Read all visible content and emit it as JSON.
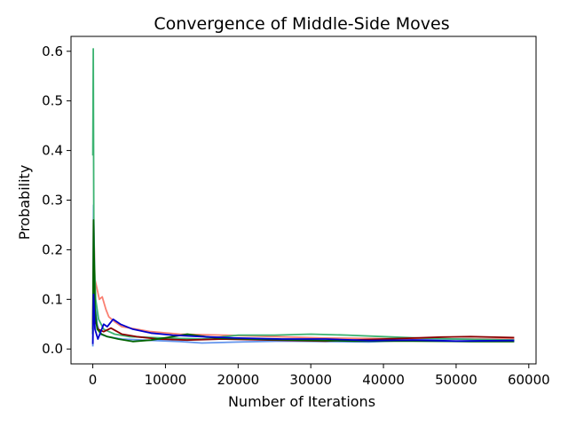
{
  "chart_data": {
    "type": "line",
    "title": "Convergence of Middle-Side Moves",
    "xlabel": "Number of Iterations",
    "ylabel": "Probability",
    "xlim": [
      -3000,
      61000
    ],
    "ylim": [
      -0.03,
      0.63
    ],
    "xticks": [
      0,
      10000,
      20000,
      30000,
      40000,
      50000,
      60000
    ],
    "xtick_labels": [
      "0",
      "10000",
      "20000",
      "30000",
      "40000",
      "50000",
      "60000"
    ],
    "yticks": [
      0.0,
      0.1,
      0.2,
      0.3,
      0.4,
      0.5,
      0.6
    ],
    "ytick_labels": [
      "0.0",
      "0.1",
      "0.2",
      "0.3",
      "0.4",
      "0.5",
      "0.6"
    ],
    "grid": false,
    "legend": "none",
    "series": [
      {
        "color": "#fa8072",
        "points": [
          [
            0,
            0.05
          ],
          [
            100,
            0.27
          ],
          [
            300,
            0.14
          ],
          [
            600,
            0.12
          ],
          [
            900,
            0.1
          ],
          [
            1300,
            0.105
          ],
          [
            1800,
            0.08
          ],
          [
            2200,
            0.065
          ],
          [
            3000,
            0.055
          ],
          [
            4000,
            0.045
          ],
          [
            6000,
            0.04
          ],
          [
            8000,
            0.035
          ],
          [
            12000,
            0.03
          ],
          [
            18000,
            0.028
          ],
          [
            25000,
            0.025
          ],
          [
            32000,
            0.022
          ],
          [
            40000,
            0.021
          ],
          [
            48000,
            0.02
          ],
          [
            58000,
            0.02
          ]
        ]
      },
      {
        "color": "#6495ed",
        "points": [
          [
            0,
            0.005
          ],
          [
            100,
            0.29
          ],
          [
            300,
            0.1
          ],
          [
            600,
            0.05
          ],
          [
            1000,
            0.03
          ],
          [
            2000,
            0.025
          ],
          [
            4000,
            0.02
          ],
          [
            7000,
            0.018
          ],
          [
            12000,
            0.015
          ],
          [
            15000,
            0.012
          ],
          [
            20000,
            0.014
          ],
          [
            26000,
            0.016
          ],
          [
            32000,
            0.015
          ],
          [
            38000,
            0.014
          ],
          [
            44000,
            0.018
          ],
          [
            50000,
            0.02
          ],
          [
            58000,
            0.018
          ]
        ]
      },
      {
        "color": "#3cb371",
        "points": [
          [
            0,
            0.39
          ],
          [
            60,
            0.605
          ],
          [
            150,
            0.2
          ],
          [
            400,
            0.1
          ],
          [
            800,
            0.06
          ],
          [
            1500,
            0.04
          ],
          [
            3000,
            0.03
          ],
          [
            5000,
            0.025
          ],
          [
            10000,
            0.022
          ],
          [
            15000,
            0.02
          ],
          [
            20000,
            0.028
          ],
          [
            25000,
            0.028
          ],
          [
            30000,
            0.03
          ],
          [
            35000,
            0.028
          ],
          [
            40000,
            0.025
          ],
          [
            45000,
            0.022
          ],
          [
            50000,
            0.02
          ],
          [
            58000,
            0.018
          ]
        ]
      },
      {
        "color": "#8b0000",
        "points": [
          [
            0,
            0.04
          ],
          [
            100,
            0.18
          ],
          [
            300,
            0.06
          ],
          [
            700,
            0.04
          ],
          [
            1500,
            0.035
          ],
          [
            2500,
            0.042
          ],
          [
            4000,
            0.03
          ],
          [
            6000,
            0.025
          ],
          [
            9000,
            0.02
          ],
          [
            13000,
            0.018
          ],
          [
            18000,
            0.02
          ],
          [
            25000,
            0.018
          ],
          [
            32000,
            0.016
          ],
          [
            40000,
            0.02
          ],
          [
            48000,
            0.024
          ],
          [
            52000,
            0.025
          ],
          [
            58000,
            0.023
          ]
        ]
      },
      {
        "color": "#006400",
        "points": [
          [
            0,
            0.03
          ],
          [
            100,
            0.26
          ],
          [
            300,
            0.08
          ],
          [
            600,
            0.04
          ],
          [
            1200,
            0.03
          ],
          [
            2000,
            0.025
          ],
          [
            3500,
            0.02
          ],
          [
            5500,
            0.015
          ],
          [
            8000,
            0.018
          ],
          [
            11000,
            0.025
          ],
          [
            13000,
            0.03
          ],
          [
            17000,
            0.022
          ],
          [
            22000,
            0.02
          ],
          [
            28000,
            0.018
          ],
          [
            36000,
            0.016
          ],
          [
            44000,
            0.016
          ],
          [
            52000,
            0.015
          ],
          [
            58000,
            0.015
          ]
        ]
      },
      {
        "color": "#0000cd",
        "points": [
          [
            0,
            0.01
          ],
          [
            100,
            0.11
          ],
          [
            300,
            0.04
          ],
          [
            700,
            0.02
          ],
          [
            1100,
            0.035
          ],
          [
            1500,
            0.05
          ],
          [
            2000,
            0.045
          ],
          [
            2800,
            0.06
          ],
          [
            3800,
            0.05
          ],
          [
            5500,
            0.04
          ],
          [
            8000,
            0.032
          ],
          [
            11000,
            0.028
          ],
          [
            15000,
            0.025
          ],
          [
            20000,
            0.022
          ],
          [
            26000,
            0.02
          ],
          [
            32000,
            0.02
          ],
          [
            38000,
            0.017
          ],
          [
            44000,
            0.018
          ],
          [
            50000,
            0.016
          ],
          [
            58000,
            0.017
          ]
        ]
      }
    ]
  }
}
